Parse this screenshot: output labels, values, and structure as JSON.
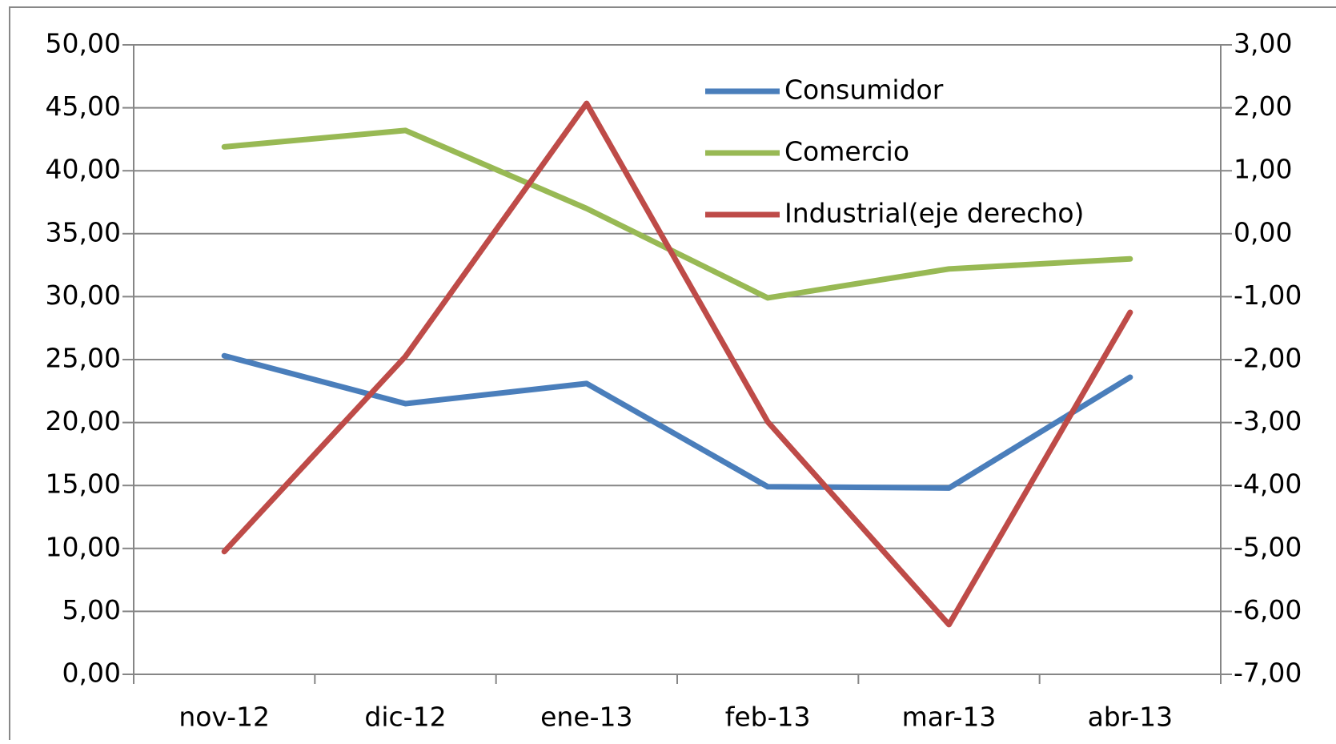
{
  "chart_data": {
    "type": "line",
    "categories": [
      "nov-12",
      "dic-12",
      "ene-13",
      "feb-13",
      "mar-13",
      "abr-13"
    ],
    "series": [
      {
        "name": "Consumidor",
        "color": "#4a7ebb",
        "values": [
          25.3,
          21.5,
          23.1,
          14.9,
          14.8,
          23.6
        ]
      },
      {
        "name": "Comercio",
        "color": "#98b954",
        "values": [
          41.9,
          43.2,
          37.0,
          29.9,
          32.2,
          33.0
        ]
      },
      {
        "name": "Industrial(eje derecho)",
        "color": "#be4b48",
        "axis": "y2",
        "values": [
          -5.05,
          -1.95,
          2.07,
          -2.99,
          -6.21,
          -1.25
        ]
      }
    ],
    "ylim": [
      0,
      50
    ],
    "yticks": [
      {
        "value": 0,
        "label": "0,00"
      },
      {
        "value": 5,
        "label": "5,00"
      },
      {
        "value": 10,
        "label": "10,00"
      },
      {
        "value": 15,
        "label": "15,00"
      },
      {
        "value": 20,
        "label": "20,00"
      },
      {
        "value": 25,
        "label": "25,00"
      },
      {
        "value": 30,
        "label": "30,00"
      },
      {
        "value": 35,
        "label": "35,00"
      },
      {
        "value": 40,
        "label": "40,00"
      },
      {
        "value": 45,
        "label": "45,00"
      },
      {
        "value": 50,
        "label": "50,00"
      }
    ],
    "y2lim": [
      -7,
      3
    ],
    "y2ticks": [
      {
        "value": -7,
        "label": "-7,00"
      },
      {
        "value": -6,
        "label": "-6,00"
      },
      {
        "value": -5,
        "label": "-5,00"
      },
      {
        "value": -4,
        "label": "-4,00"
      },
      {
        "value": -3,
        "label": "-3,00"
      },
      {
        "value": -2,
        "label": "-2,00"
      },
      {
        "value": -1,
        "label": "-1,00"
      },
      {
        "value": 0,
        "label": "0,00"
      },
      {
        "value": 1,
        "label": "1,00"
      },
      {
        "value": 2,
        "label": "2,00"
      },
      {
        "value": 3,
        "label": "3,00"
      }
    ],
    "grid": true,
    "legend": "top"
  }
}
